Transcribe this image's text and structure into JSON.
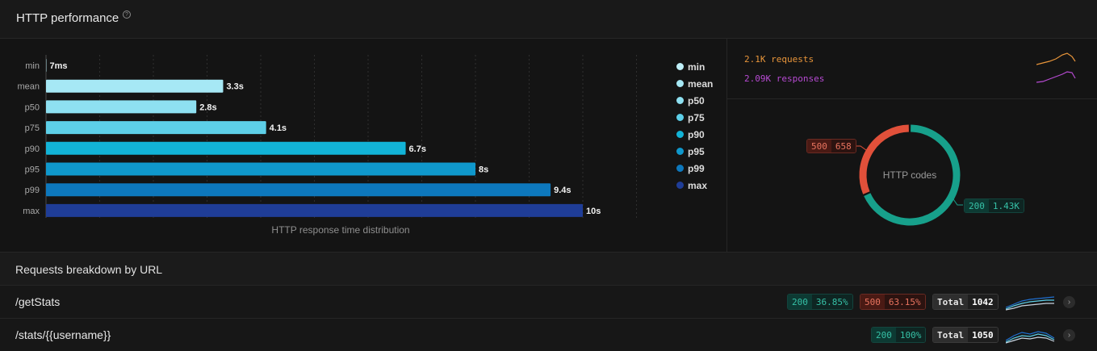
{
  "header": {
    "title": "HTTP performance",
    "help_icon": "?"
  },
  "chart_data": {
    "type": "bar",
    "orientation": "horizontal",
    "xlabel": "HTTP response time distribution",
    "categories": [
      "min",
      "mean",
      "p50",
      "p75",
      "p90",
      "p95",
      "p99",
      "max"
    ],
    "values": [
      0.007,
      3.3,
      2.8,
      4.1,
      6.7,
      8,
      9.4,
      10
    ],
    "unit": "s",
    "data_labels": [
      "7ms",
      "3.3s",
      "2.8s",
      "4.1s",
      "6.7s",
      "8s",
      "9.4s",
      "10s"
    ],
    "colors": [
      "#bfeff8",
      "#a6e8f5",
      "#8ee0f1",
      "#5dcfe8",
      "#12b3d7",
      "#0f98cc",
      "#0d78bd",
      "#1f3d97"
    ],
    "xlim": [
      0,
      11
    ],
    "grid": true,
    "legend_position": "right"
  },
  "stats": {
    "requests": "2.1K requests",
    "responses": "2.09K responses",
    "requests_color": "#e8953a",
    "responses_color": "#b74ad3"
  },
  "donut": {
    "center_label": "HTTP codes",
    "segments": [
      {
        "code": "500",
        "count": "658",
        "value": 658,
        "color": "#e1503a"
      },
      {
        "code": "200",
        "count": "1.43K",
        "value": 1430,
        "color": "#17a08b"
      }
    ]
  },
  "breakdown": {
    "title": "Requests breakdown by URL",
    "rows": [
      {
        "url": "/getStats",
        "ok_code": "200",
        "ok_pct": "36.85%",
        "err_code": "500",
        "err_pct": "63.15%",
        "total_label": "Total",
        "total": "1042"
      },
      {
        "url": "/stats/{{username}}",
        "ok_code": "200",
        "ok_pct": "100%",
        "total_label": "Total",
        "total": "1050"
      }
    ]
  }
}
